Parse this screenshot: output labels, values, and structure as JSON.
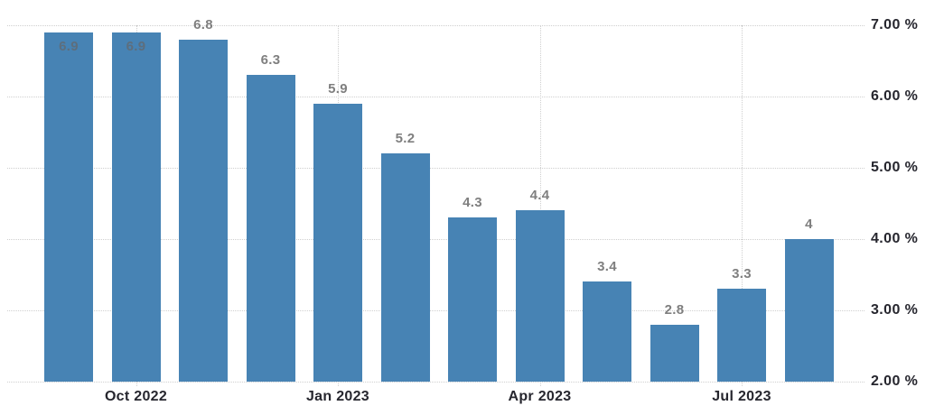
{
  "chart_data": {
    "type": "bar",
    "title": "",
    "xlabel": "",
    "ylabel": "",
    "values": [
      6.9,
      6.9,
      6.8,
      6.3,
      5.9,
      5.2,
      4.3,
      4.4,
      3.4,
      2.8,
      3.3,
      4
    ],
    "bar_labels": [
      "6.9",
      "6.9",
      "6.8",
      "6.3",
      "5.9",
      "5.2",
      "4.3",
      "4.4",
      "3.4",
      "2.8",
      "3.3",
      "4"
    ],
    "inside_label_indices": [
      0,
      1
    ],
    "x_ticks": [
      {
        "label": "Oct 2022",
        "bar_index": 1
      },
      {
        "label": "Jan 2023",
        "bar_index": 4
      },
      {
        "label": "Apr 2023",
        "bar_index": 7
      },
      {
        "label": "Jul 2023",
        "bar_index": 10
      }
    ],
    "y_ticks": [
      {
        "label": "7.00 %",
        "value": 7
      },
      {
        "label": "6.00 %",
        "value": 6
      },
      {
        "label": "5.00 %",
        "value": 5
      },
      {
        "label": "4.00 %",
        "value": 4
      },
      {
        "label": "3.00 %",
        "value": 3
      },
      {
        "label": "2.00 %",
        "value": 2
      }
    ],
    "ylim": [
      2,
      7
    ],
    "grid": "dotted",
    "legend": "none",
    "y_axis_side": "right",
    "colors": {
      "bar": "#4783b4",
      "bar_label": "#7f7f7f",
      "bar_label_inside": "#5d6e7d",
      "axis_text": "#26262e",
      "gridline": "#cfcfcf",
      "background": "#ffffff"
    }
  }
}
